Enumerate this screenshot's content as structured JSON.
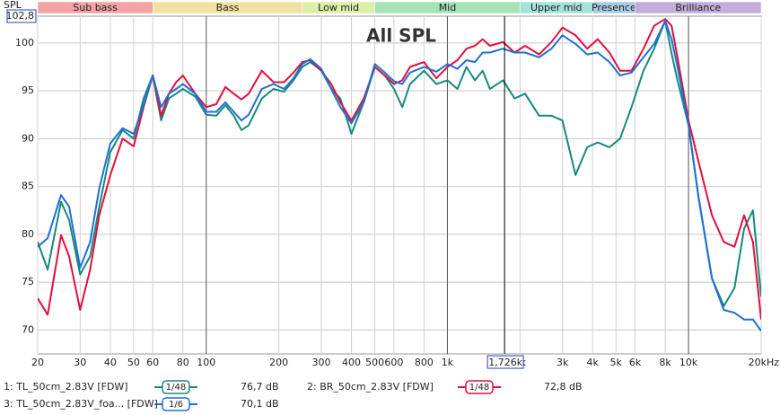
{
  "chart_data": {
    "type": "line",
    "title": "All SPL",
    "y_label": "SPL",
    "log_x": true,
    "grid": true,
    "xlim": [
      20,
      20000
    ],
    "ylim": [
      67.5,
      102.8
    ],
    "yticks": [
      70,
      75,
      80,
      85,
      90,
      95,
      100,
      {
        "value": 102.8,
        "label": "102,8"
      }
    ],
    "xticks": [
      20,
      30,
      40,
      50,
      60,
      80,
      100,
      200,
      300,
      400,
      500,
      600,
      800,
      {
        "value": 1000,
        "label": "1k"
      },
      {
        "value": 2000,
        "label": "2k"
      },
      {
        "value": 3000,
        "label": "3k"
      },
      {
        "value": 4000,
        "label": "4k"
      },
      {
        "value": 5000,
        "label": "5k"
      },
      {
        "value": 6000,
        "label": "6k"
      },
      {
        "value": 8000,
        "label": "8k"
      },
      {
        "value": 10000,
        "label": "10k"
      },
      {
        "value": 20000,
        "label": "20kHz"
      }
    ],
    "cursor": {
      "value": 1726,
      "label": "1,726k"
    },
    "bands": [
      {
        "label": "Sub bass",
        "from": 20,
        "to": 60,
        "color": "#f4a3a3"
      },
      {
        "label": "Bass",
        "from": 60,
        "to": 250,
        "color": "#f2e2a2"
      },
      {
        "label": "Low mid",
        "from": 250,
        "to": 500,
        "color": "#dcefa8"
      },
      {
        "label": "Mid",
        "from": 500,
        "to": 2000,
        "color": "#a6e3b4"
      },
      {
        "label": "Upper mid",
        "from": 2000,
        "to": 4000,
        "color": "#a6e2dc"
      },
      {
        "label": "Presence",
        "from": 4000,
        "to": 6000,
        "color": "#a9cce2"
      },
      {
        "label": "Brilliance",
        "from": 6000,
        "to": 20000,
        "color": "#c4addb"
      }
    ],
    "x": [
      20,
      22,
      25,
      27,
      30,
      33,
      36,
      40,
      45,
      50,
      55,
      60,
      65,
      70,
      75,
      80,
      90,
      100,
      110,
      120,
      130,
      140,
      150,
      170,
      190,
      210,
      230,
      250,
      270,
      300,
      330,
      360,
      400,
      450,
      500,
      550,
      600,
      650,
      700,
      800,
      900,
      1000,
      1100,
      1200,
      1300,
      1400,
      1500,
      1700,
      1900,
      2100,
      2400,
      2700,
      3000,
      3400,
      3800,
      4200,
      4700,
      5200,
      5800,
      6500,
      7200,
      8000,
      8500,
      9000,
      10000,
      11000,
      12500,
      14000,
      15500,
      17000,
      18500,
      20000
    ],
    "series": [
      {
        "name": "1: TL_50cm_2.83V [FDW]",
        "color": "#168a7c",
        "smoothing": "1/48",
        "level": "76,7 dB",
        "values": [
          79.2,
          76.3,
          83.4,
          81.5,
          75.8,
          77.7,
          82.9,
          88.6,
          90.9,
          90,
          94.2,
          96.6,
          91.9,
          94.2,
          94.7,
          95.2,
          94.4,
          92.5,
          92.4,
          93.5,
          92.4,
          90.9,
          91.4,
          94.2,
          95.2,
          94.9,
          96.1,
          97.5,
          98,
          97.1,
          95.2,
          94.2,
          90.5,
          93.8,
          97.5,
          96.6,
          95.2,
          93.3,
          95.7,
          97.1,
          95.7,
          96.1,
          95.2,
          97.5,
          96.1,
          97.1,
          95.2,
          96.1,
          94.2,
          94.7,
          92.4,
          92.4,
          91.9,
          86.2,
          89.1,
          89.6,
          89.1,
          90,
          93.3,
          97.1,
          99.4,
          102.3,
          98.9,
          96.1,
          91.4,
          83.9,
          75.4,
          72.5,
          74.4,
          80.6,
          82.5,
          73.5
        ]
      },
      {
        "name": "2: BR_50cm_2.83V [FDW]",
        "color": "#e0103c",
        "smoothing": "1/48",
        "level": "72,8 dB",
        "values": [
          73.3,
          71.6,
          79.9,
          77.7,
          72.1,
          76.3,
          82,
          86.2,
          90,
          89.2,
          93.3,
          96.6,
          92.4,
          94.7,
          95.9,
          96.6,
          94.7,
          93.3,
          93.6,
          95.4,
          94.7,
          94.1,
          94.7,
          97.1,
          95.9,
          95.9,
          96.9,
          98,
          98.2,
          97.1,
          95.7,
          93.8,
          91.9,
          94.2,
          97.5,
          96.6,
          95.7,
          96.1,
          97.5,
          98,
          96.3,
          97.5,
          98.2,
          99.4,
          99.7,
          100.4,
          99.7,
          100.1,
          99,
          99.7,
          98.8,
          100.1,
          101.6,
          100.8,
          99.4,
          100.4,
          99,
          97.1,
          97.1,
          99.4,
          101.8,
          102.5,
          101.8,
          98.5,
          91.9,
          87.6,
          82,
          79.2,
          78.7,
          82,
          79.2,
          71.1
        ]
      },
      {
        "name": "3: TL_50cm_2.83V_foa... [FDW]",
        "color": "#1f6fd6",
        "smoothing": "1/6",
        "level": "70,1 dB",
        "values": [
          78.7,
          79.6,
          84.1,
          82.9,
          76.5,
          79.2,
          84.8,
          89.5,
          91.1,
          90.5,
          93.5,
          96.6,
          93.3,
          94.7,
          95.2,
          95.7,
          94.7,
          92.8,
          92.8,
          93.8,
          92.8,
          91.9,
          92.5,
          95.2,
          95.7,
          95.2,
          96.3,
          97.8,
          98.3,
          97.3,
          95.2,
          93.3,
          91.6,
          93.8,
          97.8,
          96.9,
          96,
          95.7,
          96.9,
          97.5,
          97,
          97.8,
          97.3,
          98.2,
          98,
          99,
          99,
          99.4,
          99,
          99,
          98.5,
          99.4,
          100.8,
          99.9,
          98.8,
          99,
          98,
          96.6,
          96.9,
          98.5,
          99.9,
          102.3,
          100.4,
          97.5,
          91.4,
          83.9,
          75.4,
          72.1,
          71.8,
          71.1,
          71.1,
          69.9
        ]
      }
    ]
  }
}
